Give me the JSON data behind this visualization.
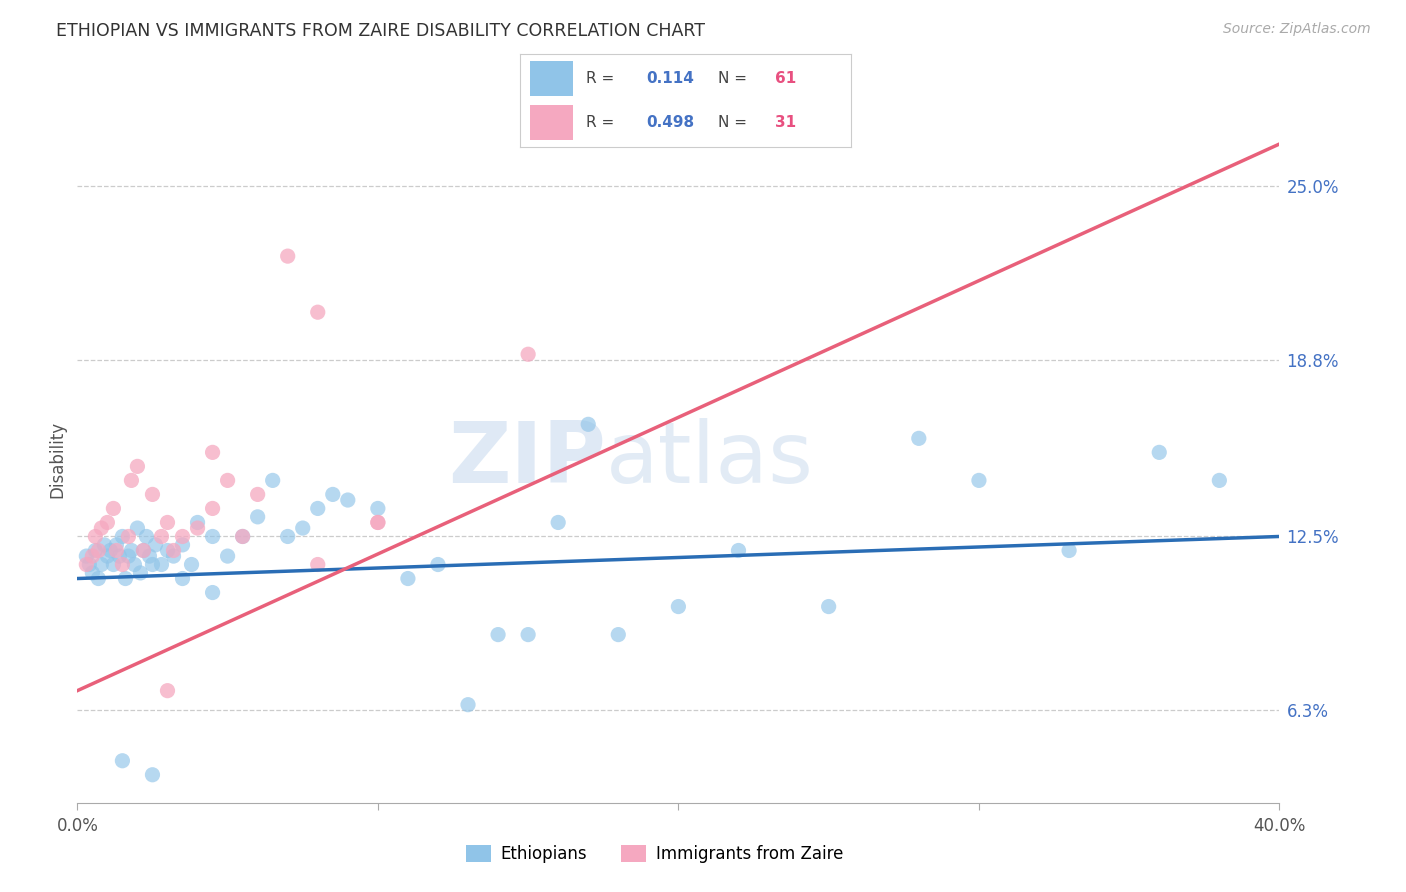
{
  "title": "ETHIOPIAN VS IMMIGRANTS FROM ZAIRE DISABILITY CORRELATION CHART",
  "source": "Source: ZipAtlas.com",
  "ylabel": "Disability",
  "xlim": [
    0.0,
    40.0
  ],
  "ylim": [
    3.0,
    27.5
  ],
  "yticks": [
    6.3,
    12.5,
    18.8,
    25.0
  ],
  "xticks": [
    0.0,
    10.0,
    20.0,
    30.0,
    40.0
  ],
  "xtick_labels": [
    "0.0%",
    "",
    "",
    "",
    "40.0%"
  ],
  "ytick_labels": [
    "6.3%",
    "12.5%",
    "18.8%",
    "25.0%"
  ],
  "R_ethiopians": 0.114,
  "N_ethiopians": 61,
  "R_zaire": 0.498,
  "N_zaire": 31,
  "ethiopian_color": "#90c4e8",
  "zaire_color": "#f5a8c0",
  "trend_ethiopian_color": "#2a6db5",
  "trend_zaire_color": "#e8607a",
  "watermark_zip": "ZIP",
  "watermark_atlas": "atlas",
  "legend_labels": [
    "Ethiopians",
    "Immigrants from Zaire"
  ],
  "eth_x": [
    0.3,
    0.4,
    0.5,
    0.6,
    0.7,
    0.8,
    0.9,
    1.0,
    1.1,
    1.2,
    1.3,
    1.4,
    1.5,
    1.6,
    1.7,
    1.8,
    1.9,
    2.0,
    2.1,
    2.2,
    2.3,
    2.4,
    2.5,
    2.6,
    2.8,
    3.0,
    3.2,
    3.5,
    3.8,
    4.0,
    4.5,
    5.0,
    5.5,
    6.0,
    6.5,
    7.0,
    7.5,
    8.0,
    8.5,
    9.0,
    10.0,
    11.0,
    12.0,
    13.0,
    14.0,
    15.0,
    16.0,
    17.0,
    18.0,
    20.0,
    22.0,
    25.0,
    28.0,
    30.0,
    33.0,
    36.0,
    38.0,
    1.5,
    2.5,
    3.5,
    4.5
  ],
  "eth_y": [
    11.8,
    11.5,
    11.2,
    12.0,
    11.0,
    11.5,
    12.2,
    11.8,
    12.0,
    11.5,
    12.2,
    11.8,
    12.5,
    11.0,
    11.8,
    12.0,
    11.5,
    12.8,
    11.2,
    12.0,
    12.5,
    11.8,
    11.5,
    12.2,
    11.5,
    12.0,
    11.8,
    12.2,
    11.5,
    13.0,
    12.5,
    11.8,
    12.5,
    13.2,
    14.5,
    12.5,
    12.8,
    13.5,
    14.0,
    13.8,
    13.5,
    11.0,
    11.5,
    6.5,
    9.0,
    9.0,
    13.0,
    16.5,
    9.0,
    10.0,
    12.0,
    10.0,
    16.0,
    14.5,
    12.0,
    15.5,
    14.5,
    4.5,
    4.0,
    11.0,
    10.5
  ],
  "zaire_x": [
    0.3,
    0.5,
    0.6,
    0.7,
    0.8,
    1.0,
    1.2,
    1.3,
    1.5,
    1.7,
    1.8,
    2.0,
    2.2,
    2.5,
    2.8,
    3.0,
    3.2,
    3.5,
    4.0,
    4.5,
    5.0,
    5.5,
    7.0,
    8.0,
    10.0,
    15.0,
    3.0,
    4.5,
    6.0,
    8.0,
    10.0
  ],
  "zaire_y": [
    11.5,
    11.8,
    12.5,
    12.0,
    12.8,
    13.0,
    13.5,
    12.0,
    11.5,
    12.5,
    14.5,
    15.0,
    12.0,
    14.0,
    12.5,
    13.0,
    12.0,
    12.5,
    12.8,
    13.5,
    14.5,
    12.5,
    22.5,
    20.5,
    13.0,
    19.0,
    7.0,
    15.5,
    14.0,
    11.5,
    13.0
  ],
  "eth_trend_x0": 0.0,
  "eth_trend_y0": 11.0,
  "eth_trend_x1": 40.0,
  "eth_trend_y1": 12.5,
  "zaire_trend_x0": 0.0,
  "zaire_trend_y0": 7.0,
  "zaire_trend_x1": 40.0,
  "zaire_trend_y1": 26.5
}
